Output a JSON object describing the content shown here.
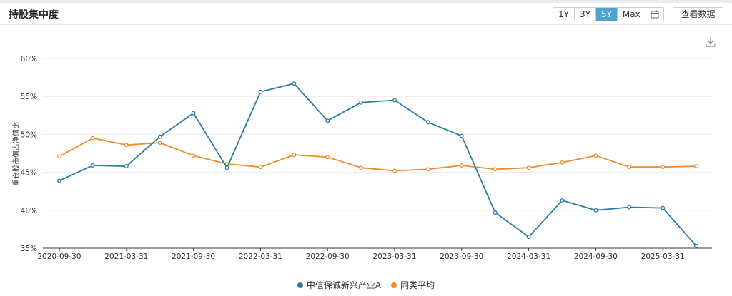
{
  "header": {
    "title": "持股集中度",
    "ranges": [
      "1Y",
      "3Y",
      "5Y",
      "Max"
    ],
    "active_range": "5Y",
    "view_data_label": "查看数据"
  },
  "icons": {
    "calendar": "calendar-icon",
    "download": "download-icon"
  },
  "colors": {
    "series1": "#2e7aa6",
    "series2": "#f08c2e",
    "active_button": "#4ea2d0"
  },
  "chart_data": {
    "type": "line",
    "ylabel": "重仓股市值占净值比",
    "xlabel": "",
    "ylim": [
      35,
      60
    ],
    "yticks": [
      "35%",
      "40%",
      "45%",
      "50%",
      "55%",
      "60%"
    ],
    "xticks": [
      "2020-09-30",
      "2021-03-31",
      "2021-09-30",
      "2022-03-31",
      "2022-09-30",
      "2023-03-31",
      "2023-09-30",
      "2024-03-31",
      "2024-09-30",
      "2025-03-31"
    ],
    "x": [
      "2020-09-30",
      "2020-12-31",
      "2021-03-31",
      "2021-06-30",
      "2021-09-30",
      "2021-12-31",
      "2022-03-31",
      "2022-06-30",
      "2022-09-30",
      "2022-12-31",
      "2023-03-31",
      "2023-06-30",
      "2023-09-30",
      "2023-12-31",
      "2024-03-31",
      "2024-06-30",
      "2024-09-30",
      "2024-12-31",
      "2025-03-31",
      "2025-06-30"
    ],
    "series": [
      {
        "name": "中信保诚新兴产业A",
        "values": [
          43.9,
          45.9,
          45.8,
          49.7,
          52.8,
          45.6,
          55.6,
          56.7,
          51.8,
          54.2,
          54.5,
          51.6,
          49.8,
          39.7,
          36.5,
          41.3,
          40.0,
          40.4,
          40.3,
          35.3
        ]
      },
      {
        "name": "同类平均",
        "values": [
          47.1,
          49.5,
          48.6,
          48.9,
          47.2,
          46.1,
          45.7,
          47.3,
          47.0,
          45.6,
          45.2,
          45.4,
          45.9,
          45.4,
          45.6,
          46.3,
          47.2,
          45.7,
          45.7,
          45.8
        ]
      }
    ],
    "legend_position": "bottom-center",
    "grid": true
  }
}
